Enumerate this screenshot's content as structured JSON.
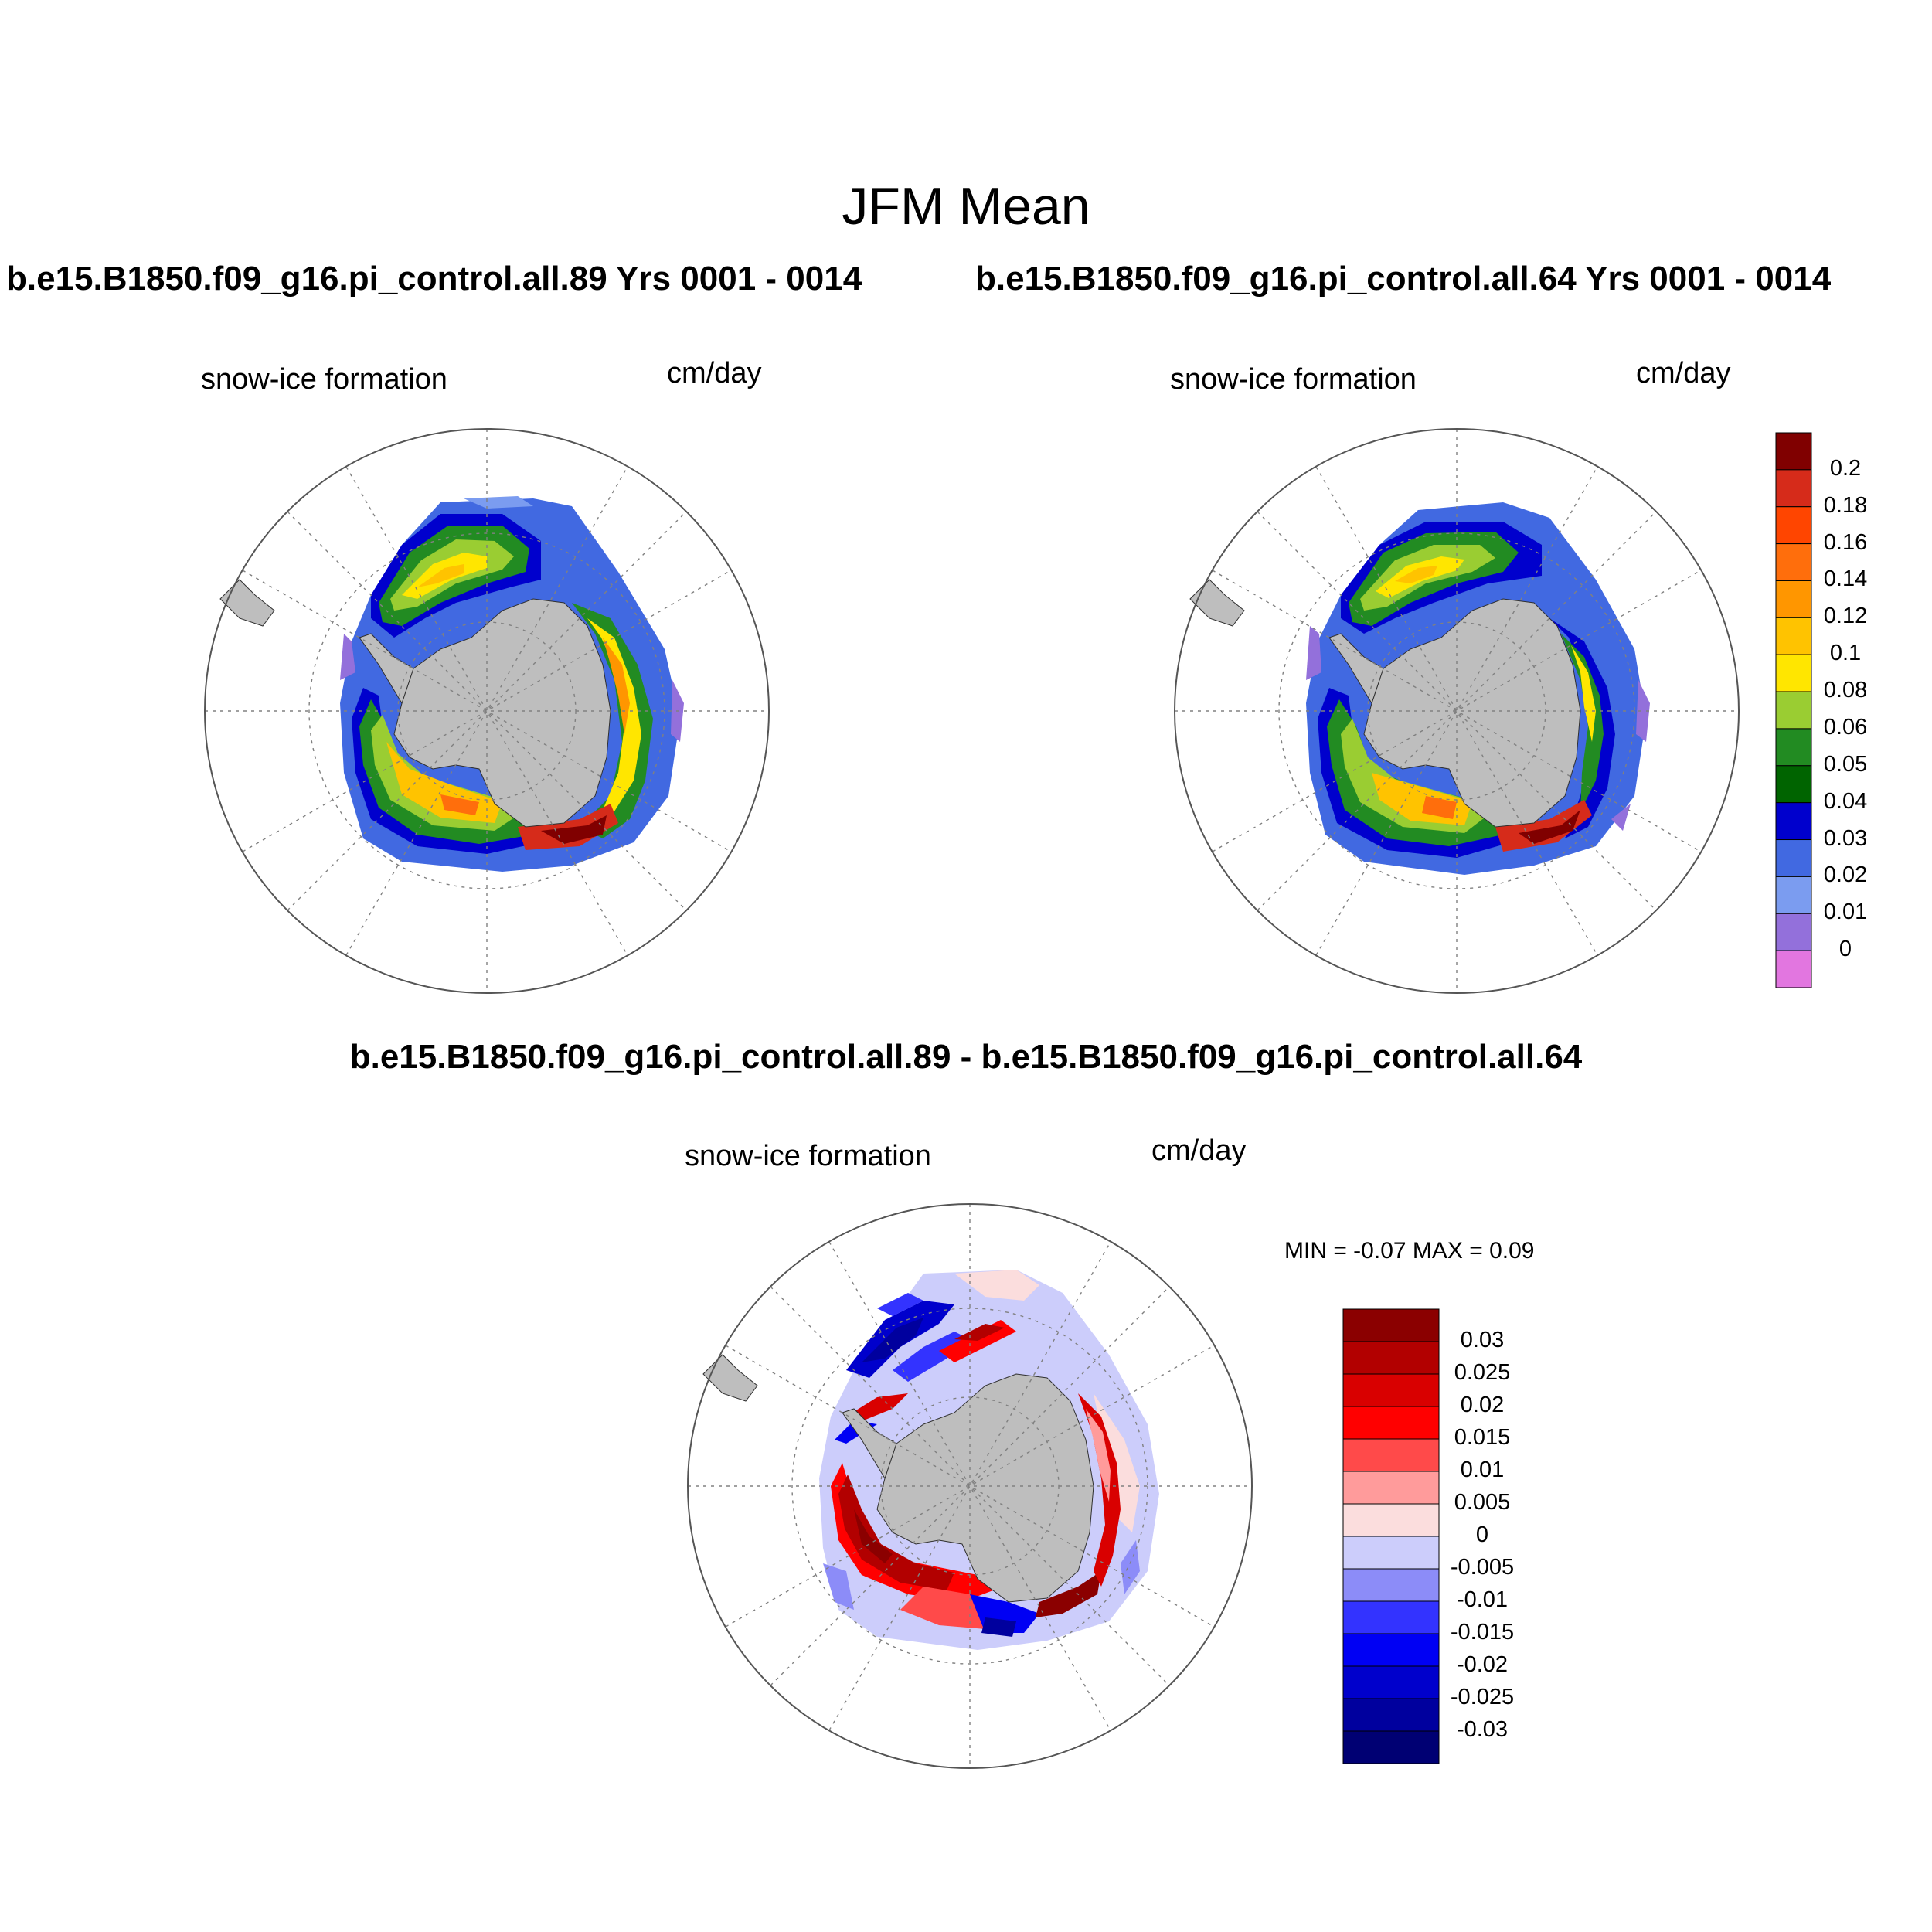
{
  "title": "JFM Mean",
  "case1_header": "b.e15.B1850.f09_g16.pi_control.all.89  Yrs 0001 - 0014",
  "case2_header": "b.e15.B1850.f09_g16.pi_control.all.64  Yrs 0001 - 0014",
  "diff_header": "b.e15.B1850.f09_g16.pi_control.all.89 - b.e15.B1850.f09_g16.pi_control.all.64",
  "panels": {
    "p1": {
      "variable": "snow-ice formation",
      "units": "cm/day"
    },
    "p2": {
      "variable": "snow-ice formation",
      "units": "cm/day"
    },
    "p3": {
      "variable": "snow-ice formation",
      "units": "cm/day"
    }
  },
  "diff_stats": "MIN =  -0.07 MAX =   0.09",
  "colors": {
    "land": "#bebebe",
    "grid": "#808080"
  },
  "mean_colorbar": {
    "labels": [
      "0.2",
      "0.18",
      "0.16",
      "0.14",
      "0.12",
      "0.1",
      "0.08",
      "0.06",
      "0.05",
      "0.04",
      "0.03",
      "0.02",
      "0.01",
      "0"
    ],
    "colors": [
      "#800000",
      "#d62b1a",
      "#ff4500",
      "#ff6e0c",
      "#ff9600",
      "#ffc300",
      "#ffe600",
      "#9acd32",
      "#228b22",
      "#006400",
      "#0000cd",
      "#4169e1",
      "#7b9cf0",
      "#9370db",
      "#e276e0"
    ]
  },
  "diff_colorbar": {
    "labels": [
      "0.03",
      "0.025",
      "0.02",
      "0.015",
      "0.01",
      "0.005",
      "0",
      "-0.005",
      "-0.01",
      "-0.015",
      "-0.02",
      "-0.025",
      "-0.03"
    ],
    "colors": [
      "#8b0000",
      "#b20000",
      "#d90000",
      "#ff0000",
      "#ff4a4a",
      "#ff9b9b",
      "#fbdddd",
      "#cccdfb",
      "#8c8cf8",
      "#3333ff",
      "#0000f4",
      "#0000cc",
      "#00009e",
      "#000073"
    ]
  }
}
